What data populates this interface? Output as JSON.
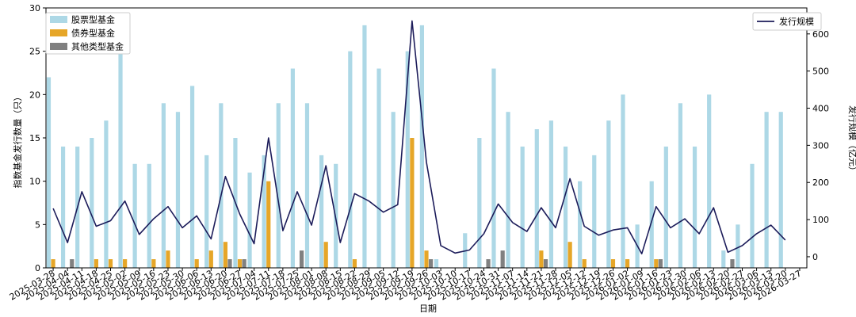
{
  "chart_data": {
    "type": "bar",
    "xlabel": "日期",
    "ylabel_left": "指数基金发行数量（只）",
    "ylabel_right": "发行规模（亿元）",
    "ylim_left": [
      0,
      30
    ],
    "ylim_right": [
      -30,
      670
    ],
    "yticks_left": [
      0,
      5,
      10,
      15,
      20,
      25,
      30
    ],
    "yticks_right": [
      0,
      100,
      200,
      300,
      400,
      500,
      600
    ],
    "legend_left_position": "top-left",
    "legend_right_position": "top-right",
    "grid": false,
    "categories": [
      "2025-03-28",
      "2025-04-04",
      "2025-04-11",
      "2025-04-18",
      "2025-04-25",
      "2025-05-02",
      "2025-05-09",
      "2025-05-16",
      "2025-05-23",
      "2025-05-30",
      "2025-06-06",
      "2025-06-13",
      "2025-06-20",
      "2025-06-27",
      "2025-07-04",
      "2025-07-11",
      "2025-07-18",
      "2025-07-25",
      "2025-08-01",
      "2025-08-08",
      "2025-08-15",
      "2025-08-22",
      "2025-08-29",
      "2025-09-05",
      "2025-09-12",
      "2025-09-19",
      "2025-09-26",
      "2025-10-03",
      "2025-10-10",
      "2025-10-17",
      "2025-10-24",
      "2025-10-31",
      "2025-11-07",
      "2025-11-14",
      "2025-11-21",
      "2025-11-28",
      "2025-12-05",
      "2025-12-12",
      "2025-12-19",
      "2025-12-26",
      "2026-01-02",
      "2026-01-09",
      "2026-01-16",
      "2026-01-23",
      "2026-01-30",
      "2026-02-06",
      "2026-02-13",
      "2026-02-20",
      "2026-02-27",
      "2026-03-06",
      "2026-03-13",
      "2026-03-20",
      "2026-03-27"
    ],
    "bar_series": [
      {
        "name": "股票型基金",
        "color": "#add8e6",
        "values": [
          22,
          14,
          14,
          15,
          17,
          29,
          12,
          12,
          19,
          18,
          21,
          13,
          19,
          15,
          11,
          13,
          19,
          23,
          19,
          13,
          12,
          25,
          28,
          23,
          18,
          25,
          28,
          1,
          0,
          4,
          15,
          23,
          18,
          14,
          16,
          17,
          14,
          10,
          13,
          17,
          20,
          5,
          10,
          14,
          19,
          14,
          20,
          2,
          5,
          12,
          18,
          18,
          0
        ]
      },
      {
        "name": "债券型基金",
        "color": "#e6a628",
        "values": [
          1,
          0,
          0,
          1,
          1,
          1,
          0,
          1,
          2,
          0,
          1,
          2,
          3,
          1,
          0,
          10,
          0,
          0,
          0,
          3,
          0,
          1,
          0,
          0,
          0,
          15,
          2,
          0,
          0,
          0,
          0,
          0,
          0,
          0,
          2,
          0,
          3,
          1,
          0,
          1,
          1,
          0,
          1,
          0,
          0,
          0,
          0,
          0,
          0,
          0,
          0,
          0,
          0
        ]
      },
      {
        "name": "其他类型基金",
        "color": "#808080",
        "values": [
          0,
          1,
          0,
          0,
          0,
          0,
          0,
          0,
          0,
          0,
          0,
          0,
          1,
          1,
          0,
          0,
          0,
          2,
          0,
          0,
          0,
          0,
          0,
          0,
          0,
          0,
          1,
          0,
          0,
          0,
          1,
          2,
          0,
          0,
          1,
          0,
          0,
          0,
          0,
          0,
          0,
          0,
          1,
          0,
          0,
          0,
          0,
          1,
          0,
          0,
          0,
          0,
          0
        ]
      }
    ],
    "line_series": {
      "name": "发行规模",
      "color": "#1c1c5a",
      "values": [
        130,
        38,
        175,
        82,
        97,
        150,
        60,
        102,
        135,
        78,
        110,
        48,
        216,
        115,
        35,
        320,
        70,
        175,
        85,
        245,
        38,
        170,
        150,
        120,
        140,
        635,
        255,
        30,
        10,
        18,
        62,
        142,
        92,
        68,
        132,
        78,
        210,
        82,
        58,
        72,
        78,
        8,
        135,
        78,
        102,
        62,
        132,
        12,
        30,
        62,
        85,
        45,
        null
      ]
    }
  }
}
